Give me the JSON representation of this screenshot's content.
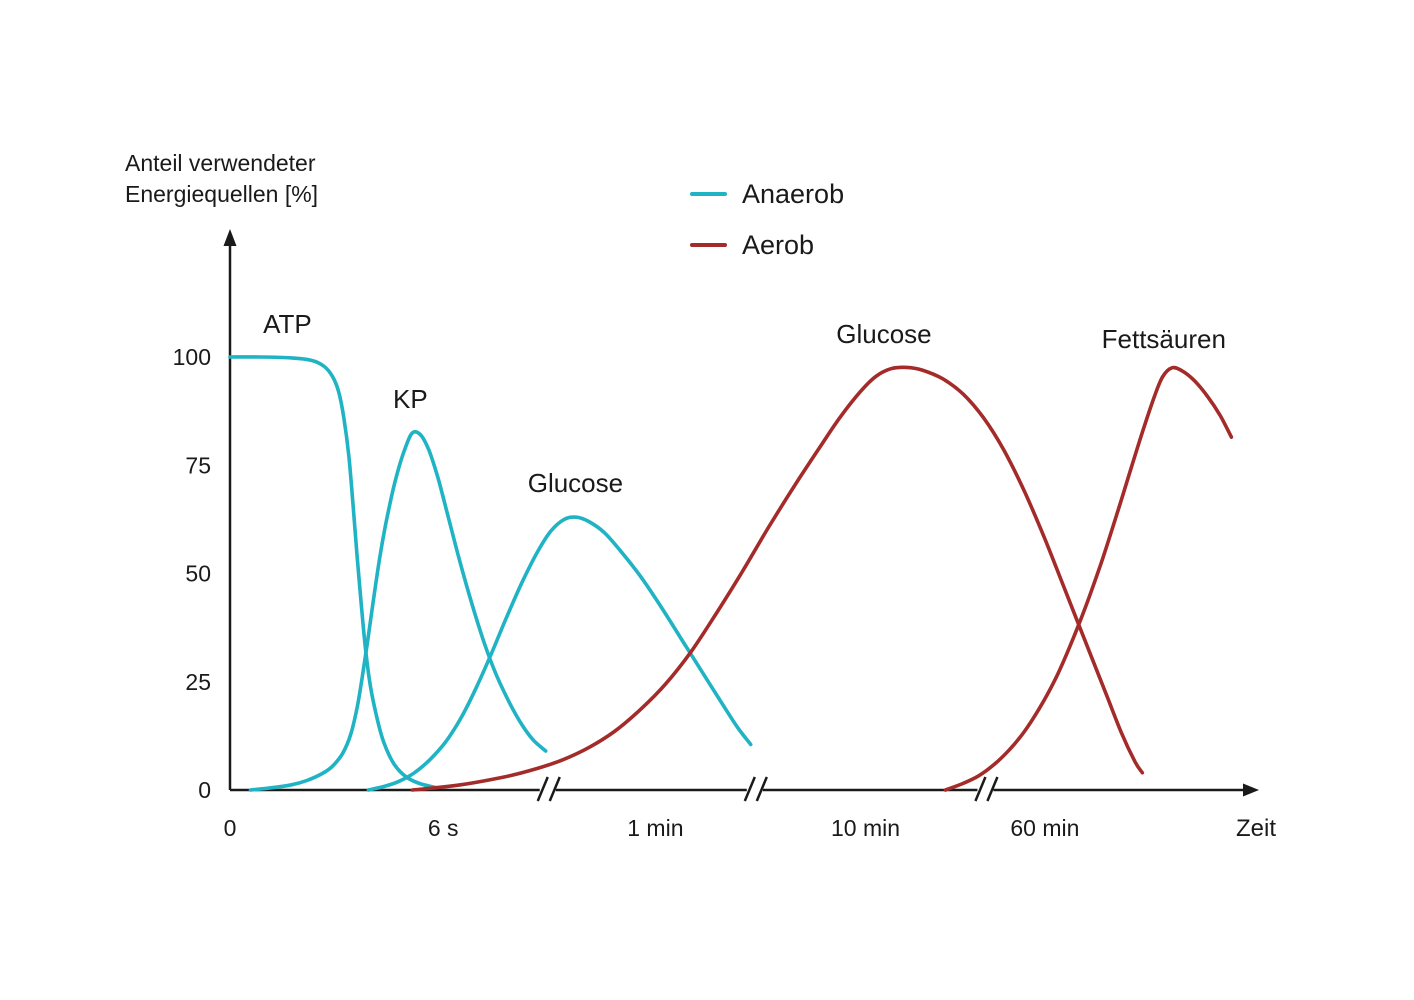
{
  "header": {
    "ylabel_line1": "Anteil verwendeter",
    "ylabel_line2": "Energiequellen [%]"
  },
  "legend": {
    "items": [
      {
        "label": "Anaerob",
        "color": "#1FB3C4"
      },
      {
        "label": "Aerob",
        "color": "#A32C2A"
      }
    ]
  },
  "colors": {
    "ink": "#1a1a1a",
    "anaerob": "#1FB3C4",
    "aerob": "#A32C2A"
  },
  "chart_data": {
    "type": "line",
    "title": "",
    "xlabel": "Zeit",
    "ylabel": "Anteil verwendeter Energiequellen [%]",
    "ylim": [
      0,
      100
    ],
    "grid": false,
    "legend_position": "top-center",
    "y_ticks": [
      0,
      25,
      50,
      75,
      100
    ],
    "x_axis": {
      "note": "non-linear time axis with three scale breaks; x values of points and ticks are percent of axis length",
      "ticks": [
        {
          "label": "0",
          "x": 0
        },
        {
          "label": "6 s",
          "x": 20.8
        },
        {
          "label": "1 min",
          "x": 41.5
        },
        {
          "label": "10 min",
          "x": 62.0
        },
        {
          "label": "60 min",
          "x": 79.5
        }
      ],
      "breaks_x": [
        31.0,
        51.2,
        73.7
      ],
      "end_label": "Zeit"
    },
    "series": [
      {
        "name": "ATP",
        "group": "Anaerob",
        "color": "#1FB3C4",
        "label": "ATP",
        "label_pos": [
          5.6,
          105.5
        ],
        "points": [
          [
            0,
            100
          ],
          [
            3,
            100
          ],
          [
            6,
            99.8
          ],
          [
            8,
            99.2
          ],
          [
            9.2,
            97.8
          ],
          [
            10,
            95.5
          ],
          [
            10.6,
            92
          ],
          [
            11.1,
            86
          ],
          [
            11.6,
            77
          ],
          [
            12,
            66
          ],
          [
            12.4,
            54
          ],
          [
            12.8,
            43
          ],
          [
            13.2,
            33
          ],
          [
            13.7,
            24
          ],
          [
            14.3,
            17
          ],
          [
            15,
            11
          ],
          [
            16,
            6
          ],
          [
            17.2,
            3
          ],
          [
            18.5,
            1.5
          ],
          [
            20,
            0.6
          ]
        ]
      },
      {
        "name": "KP",
        "group": "Anaerob",
        "color": "#1FB3C4",
        "label": "KP",
        "label_pos": [
          17.6,
          88.2
        ],
        "points": [
          [
            2,
            0
          ],
          [
            4,
            0.5
          ],
          [
            6,
            1.2
          ],
          [
            7.5,
            2.2
          ],
          [
            9,
            3.8
          ],
          [
            10,
            5.5
          ],
          [
            11,
            8.5
          ],
          [
            11.8,
            13
          ],
          [
            12.4,
            19
          ],
          [
            12.9,
            26
          ],
          [
            13.4,
            34
          ],
          [
            14,
            44
          ],
          [
            14.7,
            55
          ],
          [
            15.5,
            65
          ],
          [
            16.3,
            73
          ],
          [
            17.1,
            79
          ],
          [
            17.8,
            82.5
          ],
          [
            18.6,
            82
          ],
          [
            19.4,
            78.5
          ],
          [
            20.3,
            72
          ],
          [
            21.3,
            63
          ],
          [
            22.4,
            53
          ],
          [
            23.6,
            43
          ],
          [
            24.8,
            34
          ],
          [
            26,
            26.5
          ],
          [
            27.3,
            20
          ],
          [
            28.5,
            15
          ],
          [
            29.6,
            11.5
          ],
          [
            30.8,
            9
          ]
        ]
      },
      {
        "name": "Glucose (anaerob)",
        "group": "Anaerob",
        "color": "#1FB3C4",
        "label": "Glucose",
        "label_pos": [
          33.7,
          68.8
        ],
        "points": [
          [
            13.5,
            0
          ],
          [
            15,
            0.8
          ],
          [
            16.5,
            2
          ],
          [
            18,
            4
          ],
          [
            19.5,
            7
          ],
          [
            21,
            11
          ],
          [
            22.5,
            16.5
          ],
          [
            24,
            23.5
          ],
          [
            25.5,
            31.5
          ],
          [
            27,
            40
          ],
          [
            28.5,
            48
          ],
          [
            30,
            55
          ],
          [
            31.3,
            59.8
          ],
          [
            32.6,
            62.5
          ],
          [
            33.8,
            63
          ],
          [
            35,
            62
          ],
          [
            36.5,
            59.5
          ],
          [
            38,
            55.5
          ],
          [
            40,
            49.5
          ],
          [
            42,
            42.5
          ],
          [
            44,
            35
          ],
          [
            46,
            27.5
          ],
          [
            48,
            20
          ],
          [
            49.5,
            14.5
          ],
          [
            50.8,
            10.5
          ]
        ]
      },
      {
        "name": "Glucose (aerob)",
        "group": "Aerob",
        "color": "#A32C2A",
        "label": "Glucose",
        "label_pos": [
          63.8,
          103.2
        ],
        "points": [
          [
            17.8,
            0
          ],
          [
            20,
            0.5
          ],
          [
            22.5,
            1.2
          ],
          [
            25,
            2.2
          ],
          [
            27.5,
            3.4
          ],
          [
            30,
            5
          ],
          [
            32.5,
            7
          ],
          [
            35,
            9.8
          ],
          [
            37.5,
            13.5
          ],
          [
            40,
            18.5
          ],
          [
            42.5,
            24.5
          ],
          [
            45,
            32
          ],
          [
            47.5,
            41
          ],
          [
            50,
            50.5
          ],
          [
            52.5,
            60.5
          ],
          [
            55,
            70
          ],
          [
            57.5,
            79
          ],
          [
            59.5,
            86
          ],
          [
            61.5,
            92
          ],
          [
            63,
            95.5
          ],
          [
            64.5,
            97.3
          ],
          [
            66,
            97.6
          ],
          [
            67.5,
            97
          ],
          [
            69.5,
            95
          ],
          [
            71.5,
            91.5
          ],
          [
            73.5,
            86
          ],
          [
            75.5,
            78.5
          ],
          [
            77.5,
            69
          ],
          [
            79.5,
            58
          ],
          [
            81.5,
            46
          ],
          [
            83.5,
            34
          ],
          [
            85.5,
            22
          ],
          [
            87,
            13
          ],
          [
            88.3,
            6.5
          ],
          [
            89,
            4
          ]
        ]
      },
      {
        "name": "Fettsäuren",
        "group": "Aerob",
        "color": "#A32C2A",
        "label": "Fettsäuren",
        "label_pos": [
          91.1,
          102.1
        ],
        "points": [
          [
            69.8,
            0
          ],
          [
            71.5,
            1.5
          ],
          [
            73,
            3.2
          ],
          [
            74.5,
            5.8
          ],
          [
            76,
            9.2
          ],
          [
            77.5,
            13.5
          ],
          [
            79,
            19
          ],
          [
            80.5,
            25.5
          ],
          [
            82,
            33.5
          ],
          [
            83.5,
            42.5
          ],
          [
            85,
            52.5
          ],
          [
            86.5,
            63.5
          ],
          [
            88,
            75
          ],
          [
            89.2,
            84
          ],
          [
            90.2,
            91
          ],
          [
            91,
            95.5
          ],
          [
            91.9,
            97.5
          ],
          [
            92.9,
            96.8
          ],
          [
            94.1,
            94.5
          ],
          [
            95.4,
            90.8
          ],
          [
            96.6,
            86.5
          ],
          [
            97.7,
            81.5
          ]
        ]
      }
    ]
  }
}
